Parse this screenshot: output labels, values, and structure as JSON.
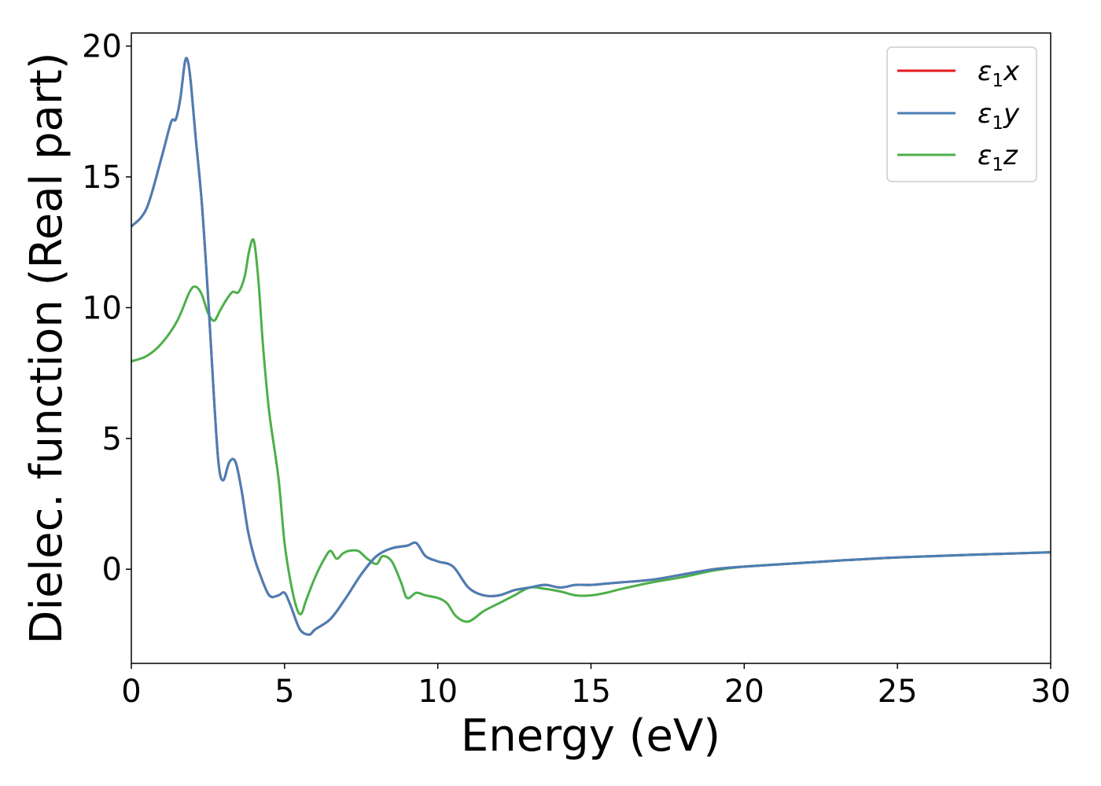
{
  "chart_data": {
    "type": "line",
    "title": "",
    "xlabel": "Energy (eV)",
    "ylabel": "Dielec. function (Real part)",
    "xlim": [
      0,
      30
    ],
    "ylim": [
      -3.6,
      20.5
    ],
    "xticks": [
      0,
      5,
      10,
      15,
      20,
      25,
      30
    ],
    "yticks": [
      0,
      5,
      10,
      15,
      20
    ],
    "grid": false,
    "legend_position": "top-right",
    "series": [
      {
        "name": "ε₁x",
        "legend_main": "ε",
        "legend_sub": "1",
        "legend_tail": "x",
        "color": "#e41a1c",
        "x": [
          0,
          0.5,
          1.0,
          1.3,
          1.45,
          1.6,
          1.75,
          1.85,
          1.95,
          2.1,
          2.3,
          2.5,
          2.7,
          2.85,
          3.0,
          3.2,
          3.4,
          3.6,
          3.8,
          4.0,
          4.2,
          4.5,
          4.8,
          5.0,
          5.2,
          5.5,
          5.8,
          6.0,
          6.5,
          7.0,
          7.5,
          8.0,
          8.5,
          9.0,
          9.3,
          9.6,
          10.0,
          10.5,
          11.0,
          11.5,
          12.0,
          12.5,
          13.0,
          13.5,
          14.0,
          14.5,
          15.0,
          15.5,
          16.0,
          17.0,
          18.0,
          19.0,
          20.0,
          22.0,
          25.0,
          30.0
        ],
        "values": [
          13.1,
          13.8,
          15.8,
          17.1,
          17.2,
          18.0,
          19.4,
          19.4,
          18.5,
          16.5,
          14.0,
          10.5,
          6.5,
          4.0,
          3.4,
          4.1,
          4.1,
          3.0,
          1.5,
          0.5,
          -0.2,
          -1.0,
          -1.0,
          -0.9,
          -1.4,
          -2.3,
          -2.5,
          -2.3,
          -1.9,
          -1.1,
          -0.2,
          0.5,
          0.8,
          0.9,
          1.0,
          0.5,
          0.3,
          0.1,
          -0.7,
          -1.0,
          -1.0,
          -0.8,
          -0.7,
          -0.6,
          -0.7,
          -0.6,
          -0.6,
          -0.55,
          -0.5,
          -0.4,
          -0.2,
          0.0,
          0.1,
          0.25,
          0.45,
          0.65
        ]
      },
      {
        "name": "ε₁y",
        "legend_main": "ε",
        "legend_sub": "1",
        "legend_tail": "y",
        "color": "#4a7eb5",
        "x": [
          0,
          0.5,
          1.0,
          1.3,
          1.45,
          1.6,
          1.75,
          1.85,
          1.95,
          2.1,
          2.3,
          2.5,
          2.7,
          2.85,
          3.0,
          3.2,
          3.4,
          3.6,
          3.8,
          4.0,
          4.2,
          4.5,
          4.8,
          5.0,
          5.2,
          5.5,
          5.8,
          6.0,
          6.5,
          7.0,
          7.5,
          8.0,
          8.5,
          9.0,
          9.3,
          9.6,
          10.0,
          10.5,
          11.0,
          11.5,
          12.0,
          12.5,
          13.0,
          13.5,
          14.0,
          14.5,
          15.0,
          15.5,
          16.0,
          17.0,
          18.0,
          19.0,
          20.0,
          22.0,
          25.0,
          30.0
        ],
        "values": [
          13.1,
          13.8,
          15.8,
          17.1,
          17.2,
          18.0,
          19.4,
          19.4,
          18.5,
          16.5,
          14.0,
          10.5,
          6.5,
          4.0,
          3.4,
          4.1,
          4.1,
          3.0,
          1.5,
          0.5,
          -0.2,
          -1.0,
          -1.0,
          -0.9,
          -1.4,
          -2.3,
          -2.5,
          -2.3,
          -1.9,
          -1.1,
          -0.2,
          0.5,
          0.8,
          0.9,
          1.0,
          0.5,
          0.3,
          0.1,
          -0.7,
          -1.0,
          -1.0,
          -0.8,
          -0.7,
          -0.6,
          -0.7,
          -0.6,
          -0.6,
          -0.55,
          -0.5,
          -0.4,
          -0.2,
          0.0,
          0.1,
          0.25,
          0.45,
          0.65
        ]
      },
      {
        "name": "ε₁z",
        "legend_main": "ε",
        "legend_sub": "1",
        "legend_tail": "z",
        "color": "#4daf4a",
        "x": [
          0,
          0.5,
          1.0,
          1.5,
          1.9,
          2.1,
          2.3,
          2.5,
          2.7,
          2.9,
          3.1,
          3.3,
          3.5,
          3.7,
          3.85,
          4.0,
          4.15,
          4.3,
          4.5,
          4.8,
          5.0,
          5.2,
          5.4,
          5.55,
          5.7,
          6.0,
          6.3,
          6.5,
          6.7,
          6.9,
          7.1,
          7.4,
          7.7,
          8.0,
          8.2,
          8.5,
          8.8,
          9.0,
          9.3,
          9.6,
          10.0,
          10.3,
          10.6,
          11.0,
          11.5,
          12.0,
          12.5,
          13.0,
          13.5,
          14.0,
          14.5,
          15.0,
          15.5,
          16.0,
          17.0,
          18.0,
          19.0,
          20.0,
          22.0,
          25.0,
          30.0
        ],
        "values": [
          7.95,
          8.15,
          8.65,
          9.5,
          10.6,
          10.8,
          10.5,
          9.8,
          9.5,
          9.9,
          10.3,
          10.6,
          10.6,
          11.2,
          12.2,
          12.55,
          11.0,
          8.5,
          6.0,
          3.5,
          1.0,
          -0.5,
          -1.5,
          -1.7,
          -1.2,
          -0.3,
          0.4,
          0.7,
          0.4,
          0.6,
          0.7,
          0.7,
          0.4,
          0.2,
          0.5,
          0.3,
          -0.5,
          -1.1,
          -0.9,
          -1.0,
          -1.1,
          -1.3,
          -1.8,
          -2.0,
          -1.6,
          -1.3,
          -1.0,
          -0.7,
          -0.75,
          -0.85,
          -1.0,
          -1.0,
          -0.9,
          -0.75,
          -0.5,
          -0.3,
          -0.05,
          0.1,
          0.25,
          0.45,
          0.65
        ]
      }
    ]
  }
}
